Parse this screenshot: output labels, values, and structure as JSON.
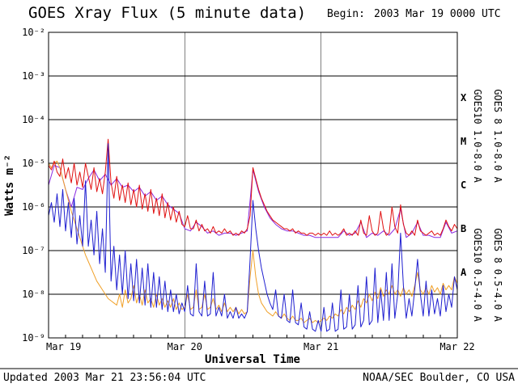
{
  "header": {
    "title": "GOES Xray Flux (5 minute data)",
    "begin_label": "Begin:",
    "begin_value": "2003 Mar 19 0000 UTC"
  },
  "footer": {
    "updated": "Updated 2003 Mar 21 23:56:04 UTC",
    "credit": "NOAA/SEC Boulder, CO USA"
  },
  "chart_data": {
    "type": "line",
    "title": "GOES Xray Flux (5 minute data)",
    "xlabel": "Universal Time",
    "ylabel": "Watts m⁻²",
    "x_start": "2003 Mar 19 0000 UTC",
    "x_range_hours": [
      0,
      72
    ],
    "minor_tick_hours": 3,
    "y_scale": "log",
    "ylim": [
      1e-09,
      0.01
    ],
    "x_ticks": [
      {
        "hour": 0,
        "label": "Mar 19"
      },
      {
        "hour": 24,
        "label": "Mar 20"
      },
      {
        "hour": 48,
        "label": "Mar 21"
      },
      {
        "hour": 72,
        "label": "Mar 22"
      }
    ],
    "y_ticks": [
      {
        "exp": -2,
        "label": "10⁻²"
      },
      {
        "exp": -3,
        "label": "10⁻³"
      },
      {
        "exp": -4,
        "label": "10⁻⁴"
      },
      {
        "exp": -5,
        "label": "10⁻⁵"
      },
      {
        "exp": -6,
        "label": "10⁻⁶"
      },
      {
        "exp": -7,
        "label": "10⁻⁷"
      },
      {
        "exp": -8,
        "label": "10⁻⁸"
      },
      {
        "exp": -9,
        "label": "10⁻⁹"
      }
    ],
    "flux_classes": [
      {
        "label": "X",
        "log_center": -3.5
      },
      {
        "label": "M",
        "log_center": -4.5
      },
      {
        "label": "C",
        "log_center": -5.5
      },
      {
        "label": "B",
        "log_center": -6.5
      },
      {
        "label": "A",
        "log_center": -7.5
      }
    ],
    "series": [
      {
        "name": "GOES10 1.0-8.0 A",
        "color": "#8a2be2",
        "x_step_hours": 1,
        "log10_flux": [
          -5.5,
          -5.05,
          -5.1,
          -5.6,
          -6.0,
          -5.55,
          -5.6,
          -5.35,
          -5.15,
          -5.4,
          -5.25,
          -5.5,
          -5.35,
          -5.55,
          -5.5,
          -5.65,
          -5.55,
          -5.75,
          -5.65,
          -5.85,
          -5.75,
          -5.95,
          -6.05,
          -6.15,
          -6.5,
          -6.55,
          -6.35,
          -6.45,
          -6.6,
          -6.55,
          -6.65,
          -6.6,
          -6.6,
          -6.65,
          -6.6,
          -6.55,
          -5.15,
          -5.65,
          -6.0,
          -6.25,
          -6.4,
          -6.5,
          -6.55,
          -6.55,
          -6.6,
          -6.65,
          -6.65,
          -6.7,
          -6.7,
          -6.7,
          -6.7,
          -6.7,
          -6.55,
          -6.65,
          -6.6,
          -6.35,
          -6.7,
          -6.6,
          -6.65,
          -6.55,
          -6.65,
          -6.5,
          -6.05,
          -6.7,
          -6.6,
          -6.35,
          -6.65,
          -6.65,
          -6.7,
          -6.7,
          -6.35,
          -6.6,
          -6.55
        ]
      },
      {
        "name": "GOES10 0.5-4.0 A",
        "color": "#f0a028",
        "x_step_hours": 0.5,
        "log10_flux": [
          -5.0,
          -5.1,
          -5.0,
          -4.95,
          -5.1,
          -5.35,
          -5.6,
          -5.85,
          -6.1,
          -6.3,
          -6.5,
          -6.7,
          -6.9,
          -7.1,
          -7.25,
          -7.4,
          -7.55,
          -7.7,
          -7.8,
          -7.9,
          -8.0,
          -8.1,
          -8.15,
          -8.2,
          -8.25,
          -8.0,
          -8.3,
          -7.9,
          -8.2,
          -8.1,
          -7.8,
          -8.2,
          -8.0,
          -8.25,
          -7.9,
          -8.2,
          -8.1,
          -8.3,
          -8.0,
          -8.25,
          -8.1,
          -8.3,
          -8.15,
          -8.3,
          -8.1,
          -8.35,
          -8.2,
          -8.35,
          -8.3,
          -8.0,
          -8.35,
          -8.3,
          -7.9,
          -8.35,
          -8.3,
          -8.0,
          -8.35,
          -8.3,
          -8.1,
          -8.35,
          -8.25,
          -8.4,
          -8.2,
          -8.4,
          -8.3,
          -8.4,
          -8.3,
          -8.45,
          -8.35,
          -8.45,
          -8.4,
          -7.6,
          -7.0,
          -7.6,
          -8.0,
          -8.2,
          -8.3,
          -8.4,
          -8.45,
          -8.5,
          -8.4,
          -8.5,
          -8.55,
          -8.45,
          -8.55,
          -8.6,
          -8.5,
          -8.6,
          -8.6,
          -8.55,
          -8.65,
          -8.6,
          -8.55,
          -8.65,
          -8.6,
          -8.65,
          -8.6,
          -8.55,
          -8.6,
          -8.5,
          -8.55,
          -8.45,
          -8.5,
          -8.35,
          -8.45,
          -8.3,
          -8.4,
          -8.25,
          -8.35,
          -8.15,
          -8.3,
          -8.1,
          -8.2,
          -8.0,
          -8.15,
          -7.95,
          -8.1,
          -7.85,
          -8.05,
          -7.9,
          -8.0,
          -7.8,
          -8.0,
          -7.9,
          -8.05,
          -7.85,
          -8.0,
          -7.9,
          -8.05,
          -7.8,
          -7.5,
          -7.9,
          -8.0,
          -7.85,
          -8.0,
          -7.8,
          -7.95,
          -7.85,
          -8.0,
          -7.75,
          -7.9,
          -7.8,
          -7.9,
          -7.6,
          -7.75
        ]
      },
      {
        "name": "GOES 8 1.0-8.0 A",
        "color": "#e01010",
        "x_step_hours": 0.5,
        "log10_flux": [
          -5.05,
          -5.15,
          -4.95,
          -5.2,
          -5.3,
          -4.9,
          -5.35,
          -5.1,
          -5.45,
          -5.0,
          -5.5,
          -5.2,
          -5.55,
          -5.0,
          -5.3,
          -5.6,
          -5.1,
          -5.65,
          -5.35,
          -5.7,
          -5.2,
          -4.45,
          -5.45,
          -5.8,
          -5.3,
          -5.85,
          -5.5,
          -5.9,
          -5.45,
          -5.95,
          -5.6,
          -6.0,
          -5.5,
          -6.05,
          -5.7,
          -6.1,
          -5.6,
          -6.15,
          -5.8,
          -6.2,
          -5.7,
          -6.25,
          -5.9,
          -6.3,
          -6.0,
          -6.35,
          -6.1,
          -6.4,
          -6.45,
          -6.2,
          -6.5,
          -6.5,
          -6.3,
          -6.55,
          -6.4,
          -6.55,
          -6.5,
          -6.6,
          -6.45,
          -6.6,
          -6.55,
          -6.6,
          -6.5,
          -6.6,
          -6.55,
          -6.65,
          -6.6,
          -6.65,
          -6.55,
          -6.6,
          -6.5,
          -6.2,
          -5.1,
          -5.35,
          -5.6,
          -5.8,
          -5.95,
          -6.1,
          -6.2,
          -6.3,
          -6.35,
          -6.4,
          -6.45,
          -6.5,
          -6.5,
          -6.55,
          -6.5,
          -6.6,
          -6.55,
          -6.6,
          -6.6,
          -6.65,
          -6.6,
          -6.6,
          -6.65,
          -6.6,
          -6.65,
          -6.6,
          -6.65,
          -6.55,
          -6.65,
          -6.6,
          -6.65,
          -6.6,
          -6.5,
          -6.65,
          -6.6,
          -6.65,
          -6.55,
          -6.65,
          -6.3,
          -6.6,
          -6.65,
          -6.2,
          -6.55,
          -6.65,
          -6.6,
          -6.1,
          -6.5,
          -6.65,
          -6.6,
          -6.0,
          -6.45,
          -6.6,
          -5.95,
          -6.4,
          -6.6,
          -6.65,
          -6.55,
          -6.65,
          -6.3,
          -6.55,
          -6.6,
          -6.65,
          -6.6,
          -6.55,
          -6.65,
          -6.6,
          -6.65,
          -6.5,
          -6.3,
          -6.45,
          -6.55,
          -6.4,
          -6.5
        ]
      },
      {
        "name": "GOES 8 0.5-4.0 A",
        "color": "#1f1fd0",
        "x_step_hours": 0.5,
        "log10_flux": [
          -6.2,
          -5.9,
          -6.35,
          -5.7,
          -6.45,
          -5.6,
          -6.55,
          -5.9,
          -6.7,
          -5.8,
          -6.85,
          -6.2,
          -6.9,
          -5.4,
          -6.9,
          -6.3,
          -7.1,
          -6.1,
          -7.3,
          -6.5,
          -7.5,
          -4.55,
          -7.7,
          -6.9,
          -7.9,
          -7.1,
          -8.0,
          -7.0,
          -8.1,
          -7.3,
          -8.15,
          -7.2,
          -8.2,
          -7.4,
          -8.25,
          -7.3,
          -8.3,
          -7.5,
          -8.3,
          -7.6,
          -8.35,
          -7.7,
          -8.4,
          -7.9,
          -8.4,
          -8.0,
          -8.45,
          -8.2,
          -8.4,
          -7.8,
          -8.45,
          -8.5,
          -7.3,
          -8.4,
          -8.5,
          -7.7,
          -8.5,
          -8.45,
          -7.5,
          -8.5,
          -8.3,
          -8.5,
          -8.0,
          -8.55,
          -8.4,
          -8.55,
          -8.3,
          -8.55,
          -8.45,
          -8.55,
          -8.4,
          -7.2,
          -5.85,
          -6.5,
          -7.0,
          -7.4,
          -7.7,
          -8.0,
          -8.2,
          -8.35,
          -7.9,
          -8.5,
          -8.55,
          -8.0,
          -8.6,
          -8.65,
          -7.9,
          -8.65,
          -8.7,
          -8.2,
          -8.75,
          -8.8,
          -8.4,
          -8.8,
          -8.85,
          -8.6,
          -8.85,
          -8.3,
          -8.85,
          -8.8,
          -8.2,
          -8.85,
          -8.8,
          -7.9,
          -8.8,
          -8.75,
          -8.0,
          -8.8,
          -8.7,
          -7.8,
          -8.75,
          -8.6,
          -7.6,
          -8.7,
          -8.6,
          -7.4,
          -8.65,
          -7.9,
          -8.6,
          -7.5,
          -8.6,
          -7.3,
          -8.55,
          -8.0,
          -6.6,
          -7.8,
          -8.55,
          -8.1,
          -8.5,
          -7.9,
          -7.2,
          -8.0,
          -8.5,
          -7.7,
          -8.5,
          -7.9,
          -8.45,
          -8.1,
          -8.5,
          -7.8,
          -8.4,
          -8.0,
          -8.3,
          -7.6,
          -7.9
        ]
      }
    ],
    "right_axis_labels": [
      {
        "text": "GOES10 1.0-8.0 A",
        "color": "#8a2be2",
        "position": "upper-inner"
      },
      {
        "text": "GOES 8 1.0-8.0 A",
        "color": "#e01010",
        "position": "upper-outer"
      },
      {
        "text": "GOES10 0.5-4.0 A",
        "color": "#f0a028",
        "position": "lower-inner"
      },
      {
        "text": "GOES 8 0.5-4.0 A",
        "color": "#1f1fd0",
        "position": "lower-outer"
      }
    ]
  }
}
